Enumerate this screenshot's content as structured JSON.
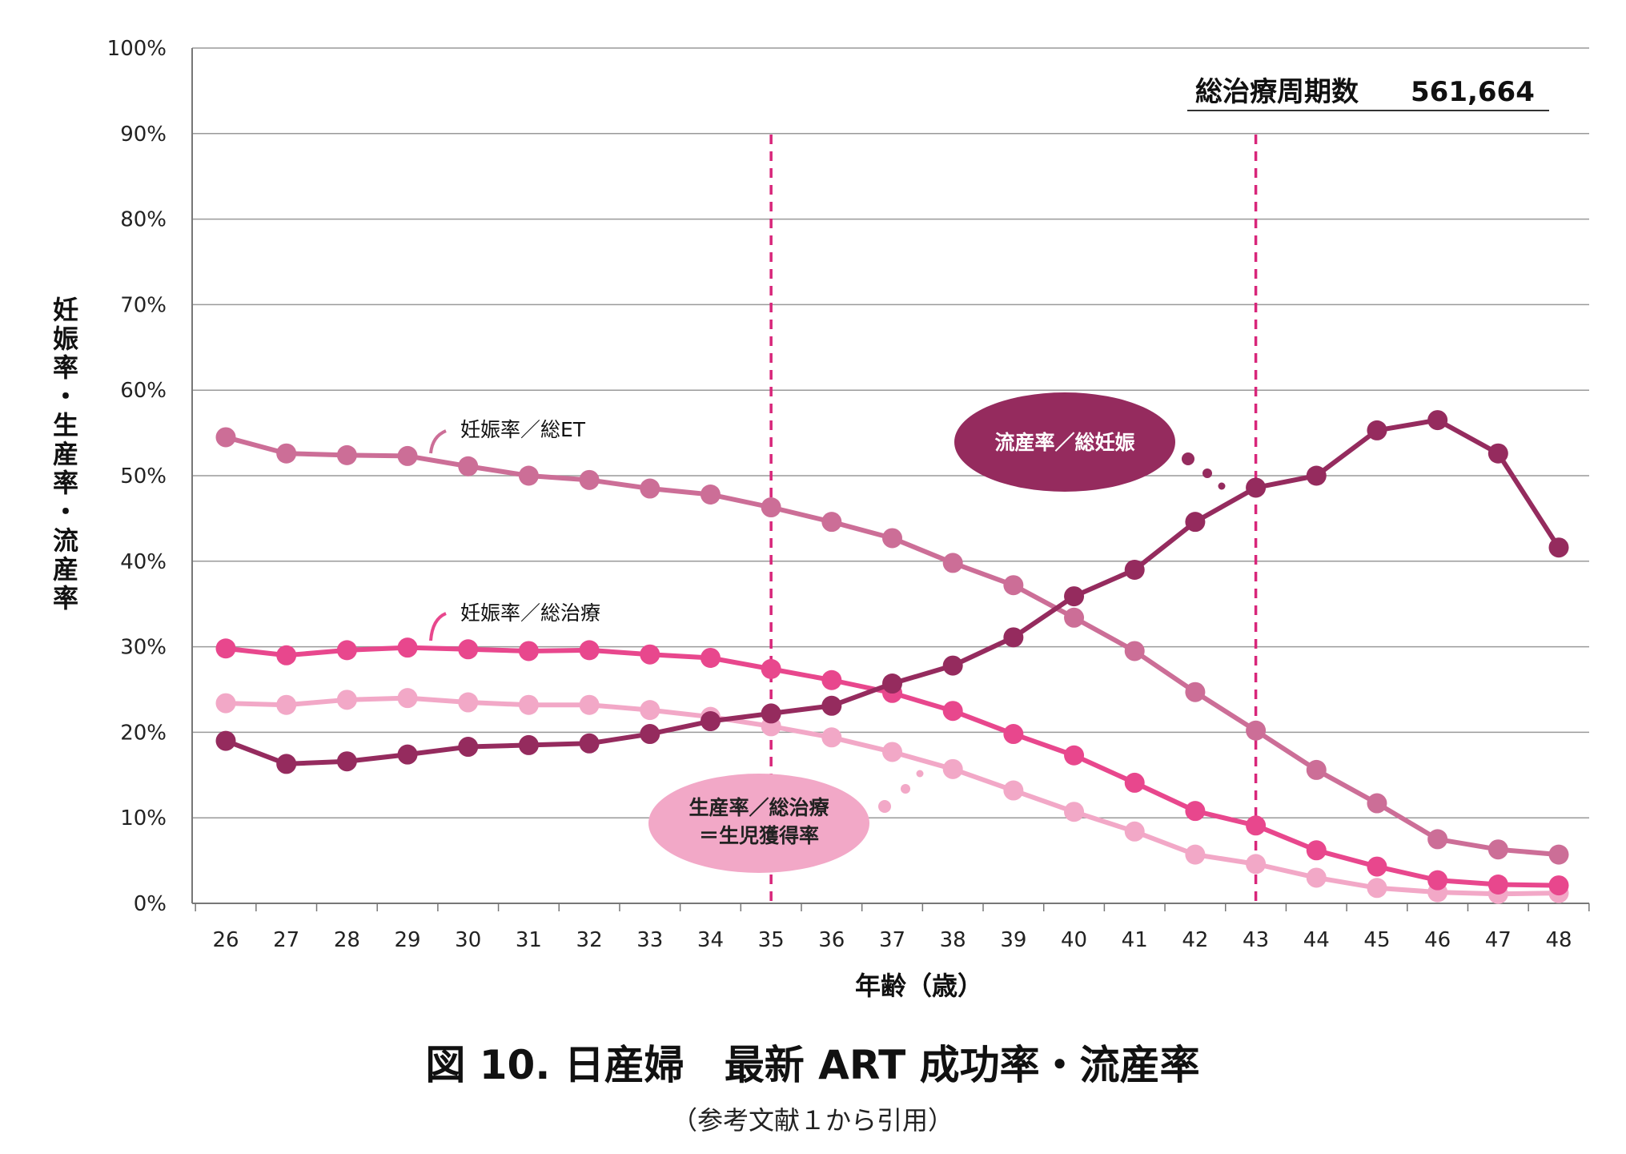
{
  "chart_data": {
    "type": "line",
    "title": "図 10.  日産婦　最新 ART 成功率・流産率",
    "subtitle": "（参考文献１から引用）",
    "xlabel": "年齢（歳）",
    "ylabel": "妊娠率・生産率・流産率",
    "total_label": "総治療周期数",
    "total_value": "561,664",
    "ylim": [
      0,
      100
    ],
    "y_ticks": [
      "0%",
      "10%",
      "20%",
      "30%",
      "40%",
      "50%",
      "60%",
      "70%",
      "80%",
      "90%",
      "100%"
    ],
    "x": [
      "26",
      "27",
      "28",
      "29",
      "30",
      "31",
      "32",
      "33",
      "34",
      "35",
      "36",
      "37",
      "38",
      "39",
      "40",
      "41",
      "42",
      "43",
      "44",
      "45",
      "46",
      "47",
      "48"
    ],
    "reference_lines_x": [
      "35",
      "43"
    ],
    "grid": true,
    "series": [
      {
        "name": "妊娠率／総ET",
        "color": "#cc6e97",
        "values": [
          54.5,
          52.6,
          52.4,
          52.3,
          51.1,
          50.0,
          49.5,
          48.5,
          47.8,
          46.3,
          44.6,
          42.7,
          39.8,
          37.2,
          33.4,
          29.5,
          24.7,
          20.2,
          15.6,
          11.7,
          7.5,
          6.3,
          5.7
        ]
      },
      {
        "name": "妊娠率／総治療",
        "color": "#e8478d",
        "values": [
          29.8,
          29.0,
          29.6,
          29.9,
          29.7,
          29.5,
          29.6,
          29.1,
          28.7,
          27.4,
          26.1,
          24.6,
          22.5,
          19.8,
          17.3,
          14.1,
          10.8,
          9.1,
          6.2,
          4.3,
          2.7,
          2.2,
          2.1
        ]
      },
      {
        "name": "生産率／総治療＝生児獲得率",
        "color": "#f2a8c7",
        "values": [
          23.4,
          23.2,
          23.8,
          24.0,
          23.5,
          23.2,
          23.2,
          22.6,
          21.8,
          20.7,
          19.4,
          17.7,
          15.7,
          13.2,
          10.7,
          8.4,
          5.7,
          4.6,
          3.0,
          1.8,
          1.3,
          1.1,
          1.2
        ]
      },
      {
        "name": "流産率／総妊娠",
        "color": "#952b5e",
        "values": [
          19.0,
          16.3,
          16.6,
          17.4,
          18.3,
          18.5,
          18.7,
          19.8,
          21.3,
          22.2,
          23.1,
          25.7,
          27.8,
          31.1,
          35.9,
          39.0,
          44.6,
          48.6,
          50.0,
          55.3,
          56.5,
          52.6,
          41.6
        ]
      }
    ]
  },
  "annotations": {
    "pregnancy_et": "妊娠率／総ET",
    "pregnancy_total": "妊娠率／総治療",
    "miscarriage": "流産率／総妊娠",
    "livebirth_line1": "生産率／総治療",
    "livebirth_line2": "＝生児獲得率"
  }
}
